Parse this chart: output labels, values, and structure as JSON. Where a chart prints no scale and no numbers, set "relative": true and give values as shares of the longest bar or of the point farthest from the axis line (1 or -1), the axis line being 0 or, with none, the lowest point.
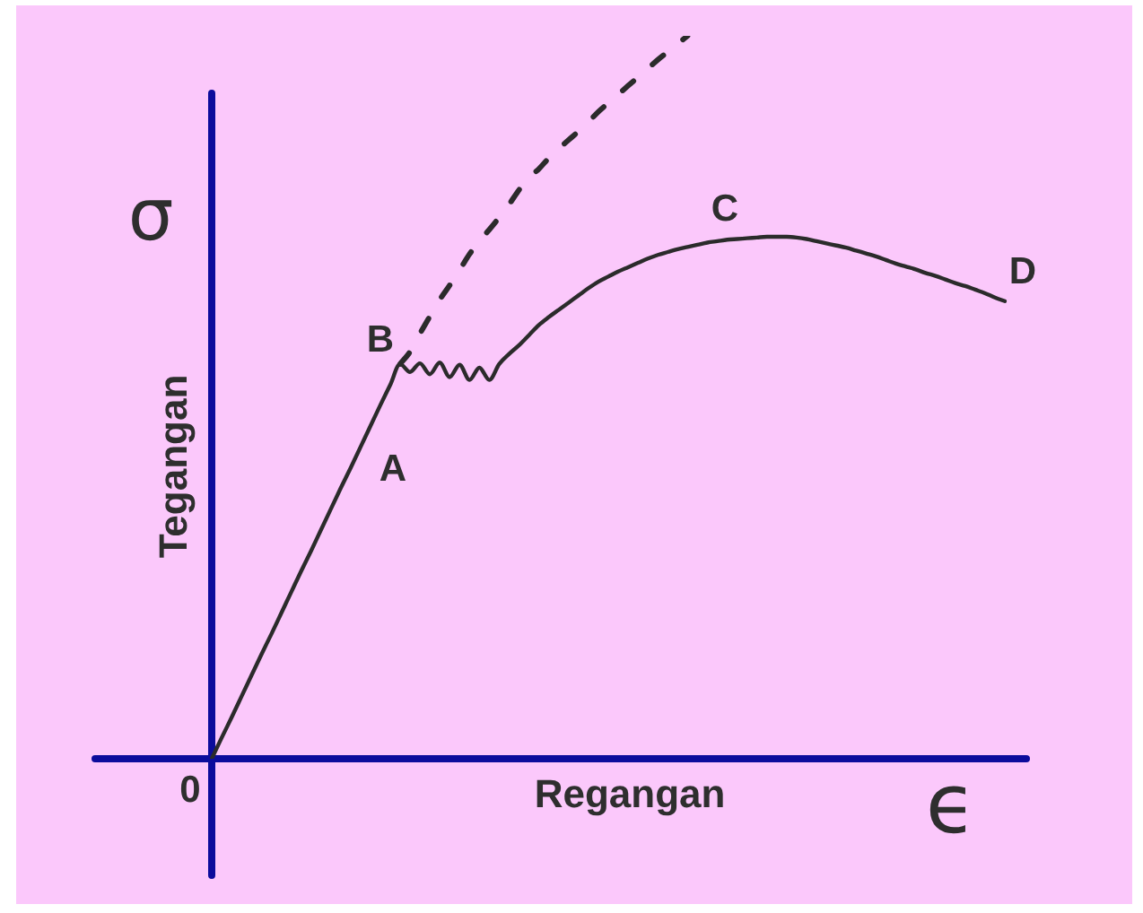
{
  "chart_data": {
    "type": "line",
    "xlabel": "Regangan",
    "ylabel": "Tegangan",
    "relative": true,
    "marker": "none",
    "line_style": "solid",
    "categories": [
      null,
      null,
      null,
      null,
      null,
      null,
      null,
      null,
      null,
      null,
      null,
      null,
      null,
      null,
      null,
      null,
      null,
      null,
      null,
      null,
      null,
      null,
      null,
      null,
      null,
      null,
      null,
      null,
      null,
      null,
      null,
      null,
      null,
      null,
      null,
      null,
      null,
      null,
      null,
      null,
      null,
      null,
      null,
      null,
      null,
      null,
      null,
      null,
      null,
      null,
      null,
      null,
      null,
      null,
      null,
      null,
      null,
      null,
      null,
      null,
      null,
      null,
      null,
      null,
      null,
      null,
      null,
      null,
      null,
      null,
      null,
      null,
      null,
      null,
      null,
      null,
      null,
      null,
      null,
      null,
      null
    ],
    "series": [
      {
        "color": "#2b2b2b",
        "values": [
          0,
          0.029,
          0.057,
          0.086,
          0.115,
          0.144,
          0.172,
          0.201,
          0.23,
          0.259,
          0.287,
          0.316,
          0.345,
          0.374,
          0.402,
          0.431,
          0.46,
          0.489,
          0.517,
          0.546,
          0.535,
          0.547,
          0.532,
          0.548,
          0.528,
          0.545,
          0.524,
          0.541,
          0.524,
          0.546,
          0.56,
          0.572,
          0.586,
          0.6,
          0.611,
          0.621,
          0.631,
          0.641,
          0.651,
          0.66,
          0.667,
          0.674,
          0.68,
          0.686,
          0.692,
          0.697,
          0.701,
          0.705,
          0.708,
          0.711,
          0.714,
          0.716,
          0.718,
          0.719,
          0.72,
          0.721,
          0.722,
          0.722,
          0.722,
          0.721,
          0.719,
          0.716,
          0.713,
          0.71,
          0.707,
          0.703,
          0.699,
          0.695,
          0.69,
          0.685,
          0.681,
          0.677,
          0.672,
          0.668,
          0.663,
          0.658,
          0.654,
          0.649,
          0.644,
          0.638,
          0.633
        ]
      },
      {
        "color": "#2b2b2b",
        "line_style": "dashed",
        "values": [
          null,
          null,
          null,
          null,
          null,
          null,
          null,
          null,
          null,
          null,
          null,
          null,
          null,
          null,
          null,
          null,
          null,
          null,
          null,
          0.546,
          0.563,
          0.588,
          0.612,
          0.635,
          0.655,
          0.676,
          0.698,
          0.716,
          0.732,
          0.749,
          0.767,
          0.787,
          0.804,
          0.816,
          0.831,
          0.844,
          0.856,
          0.868,
          0.881,
          0.895,
          0.907,
          0.919,
          0.931,
          0.943,
          0.955,
          0.967,
          0.978,
          0.989,
          1.0,
          null,
          null,
          null,
          null,
          null,
          null,
          null,
          null,
          null,
          null,
          null,
          null,
          null,
          null,
          null,
          null,
          null,
          null,
          null,
          null,
          null,
          null,
          null,
          null,
          null,
          null,
          null,
          null,
          null,
          null,
          null,
          null
        ]
      }
    ],
    "annotations": [
      "0",
      "A",
      "B",
      "C",
      "D",
      "σ",
      "ϵ"
    ]
  }
}
